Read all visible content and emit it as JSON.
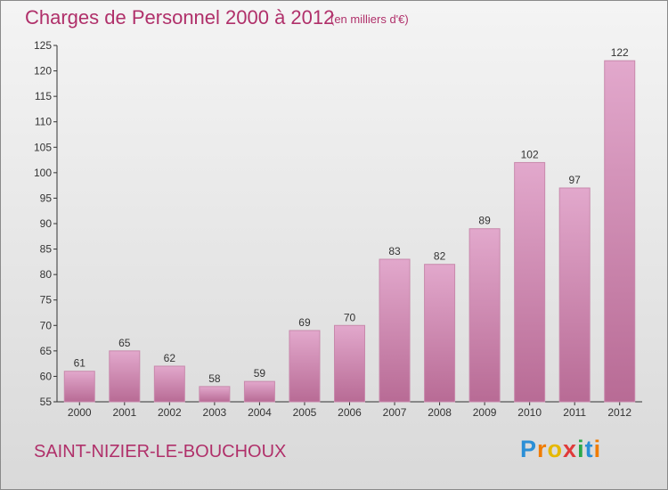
{
  "title": "Charges de Personnel 2000 à 2012",
  "subtitle": "(en milliers d'€)",
  "commune": "SAINT-NIZIER-LE-BOUCHOUX",
  "logo": {
    "text": "Proxiti",
    "letter_colors": [
      "#2b8fd6",
      "#f07c00",
      "#e6b800",
      "#e03a3a",
      "#2ba84a",
      "#2b8fd6",
      "#f07c00"
    ]
  },
  "colors": {
    "title": "#b0306a",
    "bar_top": "#e2a8cc",
    "bar_bottom": "#b86b95",
    "bar_edge": "#c889ac",
    "axis": "#333333"
  },
  "chart_data": {
    "type": "bar",
    "categories": [
      "2000",
      "2001",
      "2002",
      "2003",
      "2004",
      "2005",
      "2006",
      "2007",
      "2008",
      "2009",
      "2010",
      "2011",
      "2012"
    ],
    "values": [
      61,
      65,
      62,
      58,
      59,
      69,
      70,
      83,
      82,
      89,
      102,
      97,
      122
    ],
    "data_labels": [
      "61",
      "65",
      "62",
      "58",
      "59",
      "69",
      "70",
      "83",
      "82",
      "89",
      "102",
      "97",
      "122"
    ],
    "ylim": [
      55,
      125
    ],
    "yticks": [
      55,
      60,
      65,
      70,
      75,
      80,
      85,
      90,
      95,
      100,
      105,
      110,
      115,
      120,
      125
    ],
    "ytick_labels": [
      "55",
      "60",
      "65",
      "70",
      "75",
      "80",
      "85",
      "90",
      "95",
      "100",
      "105",
      "110",
      "115",
      "120",
      "125"
    ],
    "grid": false,
    "xlabel": "",
    "ylabel": ""
  }
}
